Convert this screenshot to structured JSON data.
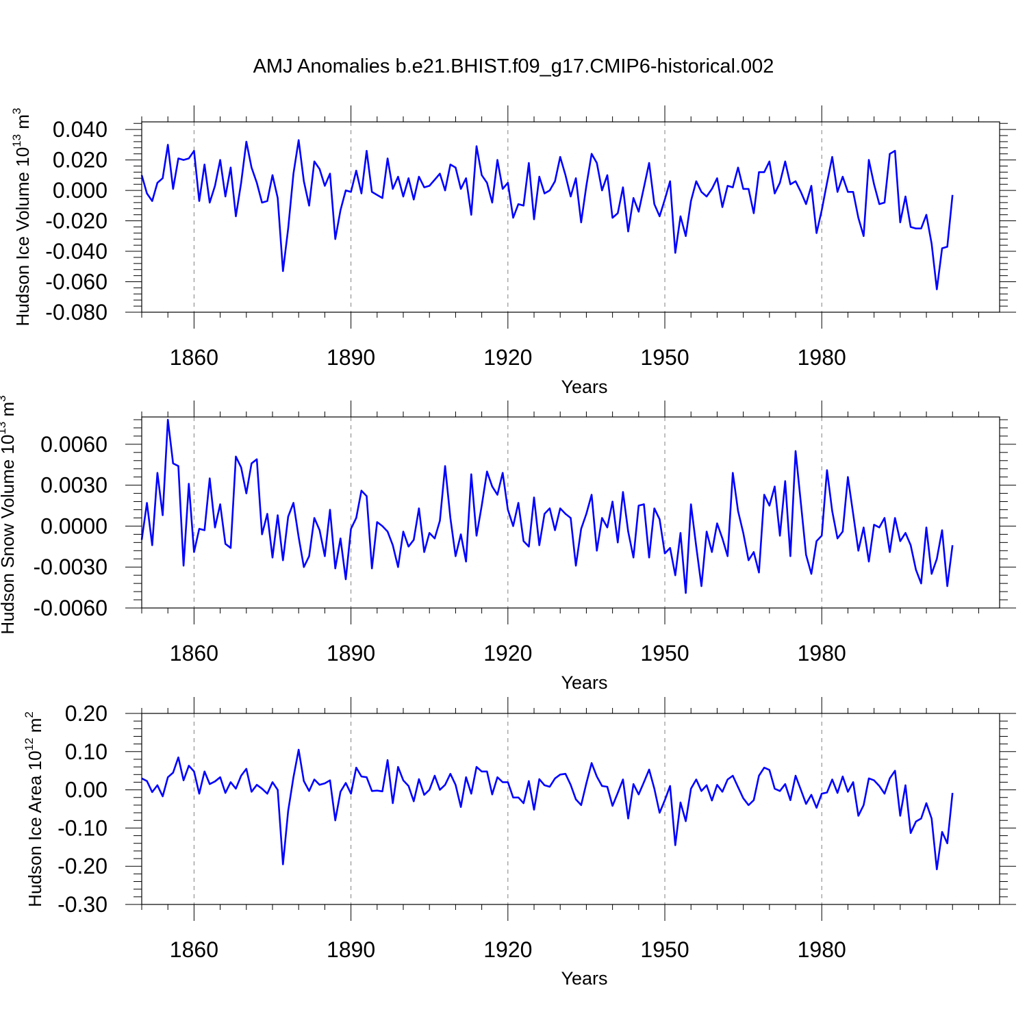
{
  "chart_data": [
    {
      "type": "line",
      "title": "AMJ Anomalies b.e21.BHIST.f09_g17.CMIP6-historical.002",
      "ylabel_main": "Hudson Ice Volume 10",
      "ylabel_exp": "13",
      "ylabel_unit": "m",
      "ylabel_unit_exp": "3",
      "xlabel": "Years",
      "xlim": [
        1850,
        2014
      ],
      "ylim": [
        -0.08,
        0.045
      ],
      "xticks": [
        1860,
        1890,
        1920,
        1950,
        1980
      ],
      "xtick_labels": [
        "1860",
        "1890",
        "1920",
        "1950",
        "1980"
      ],
      "yticks": [
        0.04,
        0.02,
        0.0,
        -0.02,
        -0.04,
        -0.06,
        -0.08
      ],
      "ytick_labels": [
        "0.040",
        "0.020",
        "0.000",
        "-0.020",
        "-0.040",
        "-0.060",
        "-0.080"
      ],
      "x_start": 1850,
      "series": [
        {
          "name": "Hudson Ice Volume",
          "color": "#0000ff",
          "values": [
            0.01,
            -0.002,
            -0.007,
            0.005,
            0.008,
            0.03,
            0.001,
            0.021,
            0.02,
            0.021,
            0.026,
            -0.007,
            0.017,
            -0.008,
            0.003,
            0.02,
            -0.004,
            0.015,
            -0.017,
            0.005,
            0.032,
            0.015,
            0.005,
            -0.008,
            -0.007,
            0.01,
            -0.005,
            -0.053,
            -0.025,
            0.011,
            0.033,
            0.006,
            -0.01,
            0.019,
            0.014,
            0.003,
            0.011,
            -0.032,
            -0.013,
            0.0,
            -0.001,
            0.013,
            -0.002,
            0.026,
            -0.001,
            -0.003,
            -0.005,
            0.021,
            0.001,
            0.009,
            -0.004,
            0.008,
            -0.006,
            0.009,
            0.002,
            0.003,
            0.007,
            0.011,
            0.0,
            0.017,
            0.015,
            0.001,
            0.008,
            -0.016,
            0.029,
            0.01,
            0.005,
            -0.008,
            0.02,
            0.001,
            0.005,
            -0.018,
            -0.009,
            -0.01,
            0.018,
            -0.019,
            0.009,
            -0.002,
            0.0,
            0.006,
            0.022,
            0.01,
            -0.004,
            0.008,
            -0.021,
            0.003,
            0.024,
            0.018,
            0.0,
            0.01,
            -0.018,
            -0.015,
            0.002,
            -0.027,
            -0.005,
            -0.014,
            0.002,
            0.018,
            -0.009,
            -0.017,
            -0.006,
            0.006,
            -0.041,
            -0.017,
            -0.03,
            -0.007,
            0.006,
            -0.001,
            -0.004,
            0.001,
            0.008,
            -0.011,
            0.003,
            0.002,
            0.015,
            0.001,
            0.001,
            -0.015,
            0.012,
            0.012,
            0.019,
            -0.002,
            0.005,
            0.019,
            0.004,
            0.006,
            -0.001,
            -0.009,
            0.003,
            -0.028,
            -0.013,
            0.005,
            0.022,
            -0.001,
            0.009,
            -0.001,
            -0.001,
            -0.018,
            -0.03,
            0.02,
            0.004,
            -0.009,
            -0.008,
            0.024,
            0.026,
            -0.021,
            -0.004,
            -0.024,
            -0.025,
            -0.025,
            -0.016,
            -0.035,
            -0.065,
            -0.038,
            -0.037,
            -0.003
          ]
        }
      ]
    },
    {
      "type": "line",
      "ylabel_main": "Hudson Snow Volume 10",
      "ylabel_exp": "13",
      "ylabel_unit": "m",
      "ylabel_unit_exp": "3",
      "xlabel": "Years",
      "xlim": [
        1850,
        2014
      ],
      "ylim": [
        -0.006,
        0.008
      ],
      "xticks": [
        1860,
        1890,
        1920,
        1950,
        1980
      ],
      "xtick_labels": [
        "1860",
        "1890",
        "1920",
        "1950",
        "1980"
      ],
      "yticks": [
        0.006,
        0.003,
        0.0,
        -0.003,
        -0.006
      ],
      "ytick_labels": [
        "0.0060",
        "0.0030",
        "0.0000",
        "-0.0030",
        "-0.0060"
      ],
      "x_start": 1850,
      "series": [
        {
          "name": "Hudson Snow Volume",
          "color": "#0000ff",
          "values": [
            -0.001,
            0.0017,
            -0.0014,
            0.0039,
            0.0008,
            0.0078,
            0.0046,
            0.0044,
            -0.0029,
            0.0031,
            -0.0019,
            -0.0002,
            -0.0003,
            0.0035,
            -0.0001,
            0.0016,
            -0.0013,
            -0.0016,
            0.0051,
            0.0043,
            0.0024,
            0.0046,
            0.0049,
            -0.0006,
            0.0009,
            -0.0023,
            0.0008,
            -0.0025,
            0.0007,
            0.0017,
            -0.0008,
            -0.003,
            -0.0022,
            0.0006,
            -0.0003,
            -0.0022,
            0.0012,
            -0.0031,
            -0.0009,
            -0.0039,
            -0.0002,
            0.0006,
            0.0026,
            0.0022,
            -0.0031,
            0.0003,
            0.0,
            -0.0004,
            -0.0014,
            -0.003,
            -0.0004,
            -0.0015,
            -0.001,
            0.0013,
            -0.0019,
            -0.0005,
            -0.0009,
            0.0004,
            0.0044,
            0.0006,
            -0.0022,
            -0.0006,
            -0.0026,
            0.0038,
            -0.0007,
            0.0015,
            0.004,
            0.0029,
            0.0023,
            0.0039,
            0.0012,
            0.0,
            0.0017,
            -0.0011,
            -0.0015,
            0.0021,
            -0.0014,
            0.0009,
            0.0013,
            -0.0003,
            0.0013,
            0.0009,
            0.0006,
            -0.0029,
            -0.0002,
            0.0009,
            0.0023,
            -0.0018,
            0.0006,
            -0.0001,
            0.0018,
            -0.0012,
            0.0025,
            -0.0004,
            -0.0023,
            0.0015,
            0.0016,
            -0.0023,
            0.0013,
            0.0005,
            -0.002,
            -0.0016,
            -0.0036,
            -0.0005,
            -0.0049,
            0.0016,
            -0.0015,
            -0.0044,
            -0.0004,
            -0.0019,
            0.0002,
            -0.0009,
            -0.0022,
            0.0039,
            0.0011,
            -0.0005,
            -0.0025,
            -0.0019,
            -0.0034,
            0.0023,
            0.0015,
            0.0029,
            -0.0007,
            0.0033,
            -0.0022,
            0.0055,
            0.0017,
            -0.0021,
            -0.0035,
            -0.0011,
            -0.0007,
            0.0041,
            0.0011,
            -0.0009,
            -0.0004,
            0.0036,
            0.0009,
            -0.0018,
            -0.0001,
            -0.0026,
            0.0001,
            -0.0001,
            0.0006,
            -0.0019,
            0.0006,
            -0.0011,
            -0.0005,
            -0.0014,
            -0.0032,
            -0.0042,
            -0.0001,
            -0.0035,
            -0.0024,
            -0.0003,
            -0.0044,
            -0.0014
          ]
        }
      ]
    },
    {
      "type": "line",
      "ylabel_main": "Hudson Ice Area 10",
      "ylabel_exp": "12",
      "ylabel_unit": "m",
      "ylabel_unit_exp": "2",
      "xlabel": "Years",
      "xlim": [
        1850,
        2014
      ],
      "ylim": [
        -0.3,
        0.2
      ],
      "xticks": [
        1860,
        1890,
        1920,
        1950,
        1980
      ],
      "xtick_labels": [
        "1860",
        "1890",
        "1920",
        "1950",
        "1980"
      ],
      "yticks": [
        0.2,
        0.1,
        0.0,
        -0.1,
        -0.2,
        -0.3
      ],
      "ytick_labels": [
        "0.20",
        "0.10",
        "0.00",
        "-0.10",
        "-0.20",
        "-0.30"
      ],
      "x_start": 1850,
      "series": [
        {
          "name": "Hudson Ice Area",
          "color": "#0000ff",
          "values": [
            0.03,
            0.023,
            -0.006,
            0.012,
            -0.017,
            0.033,
            0.045,
            0.085,
            0.025,
            0.063,
            0.048,
            -0.01,
            0.048,
            0.015,
            0.022,
            0.033,
            -0.008,
            0.02,
            0.003,
            0.037,
            0.055,
            -0.005,
            0.013,
            0.003,
            -0.01,
            0.02,
            0.0,
            -0.195,
            -0.055,
            0.033,
            0.105,
            0.023,
            -0.003,
            0.027,
            0.013,
            0.017,
            0.025,
            -0.08,
            -0.005,
            0.018,
            -0.01,
            0.058,
            0.035,
            0.033,
            -0.003,
            -0.002,
            -0.004,
            0.078,
            -0.035,
            0.06,
            0.025,
            0.01,
            -0.03,
            0.028,
            -0.013,
            0.0,
            0.037,
            0.0,
            0.013,
            0.042,
            0.013,
            -0.045,
            0.033,
            -0.01,
            0.06,
            0.048,
            0.048,
            -0.012,
            0.033,
            0.02,
            0.02,
            -0.02,
            -0.02,
            -0.035,
            0.023,
            -0.052,
            0.028,
            0.012,
            0.008,
            0.03,
            0.04,
            0.042,
            0.013,
            -0.025,
            -0.04,
            0.017,
            0.07,
            0.035,
            0.01,
            0.008,
            -0.042,
            -0.008,
            0.027,
            -0.075,
            0.015,
            -0.012,
            0.02,
            0.053,
            0.003,
            -0.06,
            -0.027,
            0.01,
            -0.145,
            -0.033,
            -0.082,
            0.003,
            0.027,
            -0.003,
            0.012,
            -0.028,
            0.013,
            -0.005,
            0.027,
            0.037,
            0.007,
            -0.022,
            -0.04,
            -0.027,
            0.037,
            0.058,
            0.052,
            0.003,
            -0.003,
            0.015,
            -0.027,
            0.037,
            0.0,
            -0.037,
            -0.013,
            -0.047,
            -0.01,
            -0.007,
            0.027,
            -0.008,
            0.035,
            -0.005,
            0.02,
            -0.068,
            -0.04,
            0.03,
            0.025,
            0.01,
            -0.01,
            0.03,
            0.05,
            -0.068,
            0.012,
            -0.113,
            -0.083,
            -0.075,
            -0.035,
            -0.075,
            -0.208,
            -0.11,
            -0.14,
            -0.008
          ]
        }
      ]
    }
  ]
}
